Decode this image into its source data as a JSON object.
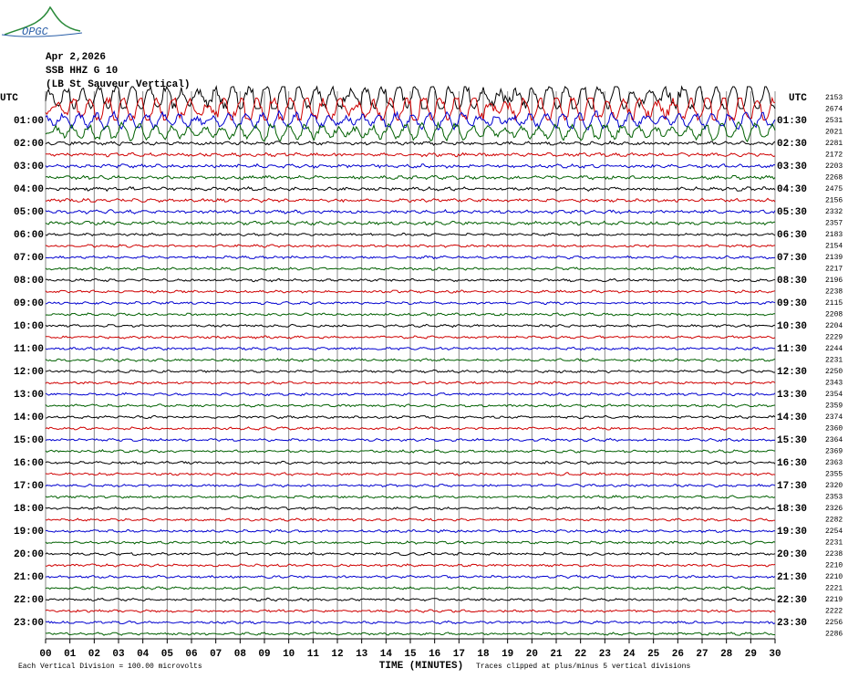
{
  "header": {
    "logo": "OPGC",
    "date": "Apr 2,2026",
    "station": "SSB HHZ G 10",
    "location": "(LB St Sauveur Vertical)"
  },
  "left_labels": [
    "UTC",
    "01:00",
    "02:00",
    "03:00",
    "04:00",
    "05:00",
    "06:00",
    "07:00",
    "08:00",
    "09:00",
    "10:00",
    "11:00",
    "12:00",
    "13:00",
    "14:00",
    "15:00",
    "16:00",
    "17:00",
    "18:00",
    "19:00",
    "20:00",
    "21:00",
    "22:00",
    "23:00"
  ],
  "right_labels": [
    "UTC",
    "01:30",
    "02:30",
    "03:30",
    "04:30",
    "05:30",
    "06:30",
    "07:30",
    "08:30",
    "09:30",
    "10:30",
    "11:30",
    "12:30",
    "13:30",
    "14:30",
    "15:30",
    "16:30",
    "17:30",
    "18:30",
    "19:30",
    "20:30",
    "21:30",
    "22:30",
    "23:30"
  ],
  "counts": [
    2153,
    2674,
    2531,
    2021,
    2281,
    2172,
    2203,
    2268,
    2475,
    2156,
    2332,
    2357,
    2183,
    2154,
    2139,
    2217,
    2196,
    2238,
    2115,
    2208,
    2204,
    2229,
    2244,
    2231,
    2250,
    2343,
    2354,
    2359,
    2374,
    2360,
    2364,
    2369,
    2363,
    2355,
    2320,
    2353,
    2326,
    2282,
    2254,
    2231,
    2238,
    2210,
    2210,
    2221,
    2219,
    2222,
    2256,
    2286
  ],
  "x_ticks": [
    "00",
    "01",
    "02",
    "03",
    "04",
    "05",
    "06",
    "07",
    "08",
    "09",
    "10",
    "11",
    "12",
    "13",
    "14",
    "15",
    "16",
    "17",
    "18",
    "19",
    "20",
    "21",
    "22",
    "23",
    "24",
    "25",
    "26",
    "27",
    "28",
    "29",
    "30"
  ],
  "trace_colors": [
    "#000000",
    "#d00000",
    "#0000d0",
    "#006000"
  ],
  "footer": {
    "scale": "Each Vertical Division =  100.00 microvolts",
    "x_title": "TIME (MINUTES)",
    "clip": "Traces clipped at plus/minus 5 vertical divisions"
  }
}
